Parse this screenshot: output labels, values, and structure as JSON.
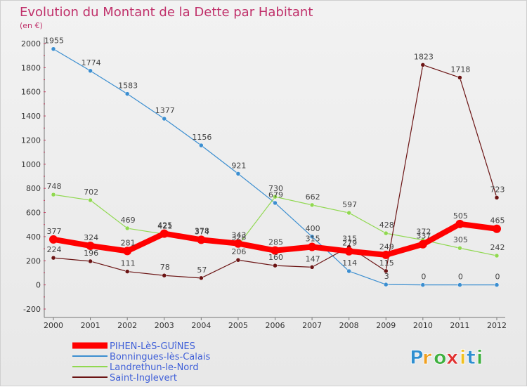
{
  "chart_data": {
    "type": "line",
    "title": "Evolution du Montant de la Dette par Habitant",
    "subtitle": "(en €)",
    "x": [
      "2000",
      "2001",
      "2002",
      "2003",
      "2004",
      "2005",
      "2006",
      "2007",
      "2008",
      "2009",
      "2010",
      "2011",
      "2012"
    ],
    "ylim": [
      -200,
      2000
    ],
    "yticks": [
      -200,
      0,
      200,
      400,
      600,
      800,
      1000,
      1200,
      1400,
      1600,
      1800,
      2000
    ],
    "grid": false,
    "legend_position": "bottom-left",
    "series": [
      {
        "name": "PIHEN-LèS-GUîNES",
        "color": "#ff0000",
        "values": [
          377,
          324,
          281,
          425,
          374,
          343,
          285,
          315,
          279,
          249,
          337,
          505,
          465
        ]
      },
      {
        "name": "Bonningues-lès-Calais",
        "color": "#3b8ed0",
        "values": [
          1955,
          1774,
          1583,
          1377,
          1156,
          921,
          679,
          400,
          114,
          3,
          0,
          0,
          0
        ]
      },
      {
        "name": "Landrethun-le-Nord",
        "color": "#90d850",
        "values": [
          748,
          702,
          469,
          421,
          378,
          328,
          730,
          662,
          597,
          428,
          372,
          305,
          242
        ]
      },
      {
        "name": "Saint-Inglevert",
        "color": "#6b1414",
        "values": [
          224,
          196,
          111,
          78,
          57,
          206,
          160,
          147,
          315,
          115,
          1823,
          1718,
          723
        ]
      }
    ]
  },
  "logo": {
    "letters": [
      "P",
      "r",
      "o",
      "x",
      "i",
      "t",
      "i"
    ],
    "colors": [
      "#2f8fd0",
      "#f0a020",
      "#3fb040",
      "#e03030",
      "#f0c020",
      "#2f8fd0",
      "#3fb040"
    ]
  }
}
